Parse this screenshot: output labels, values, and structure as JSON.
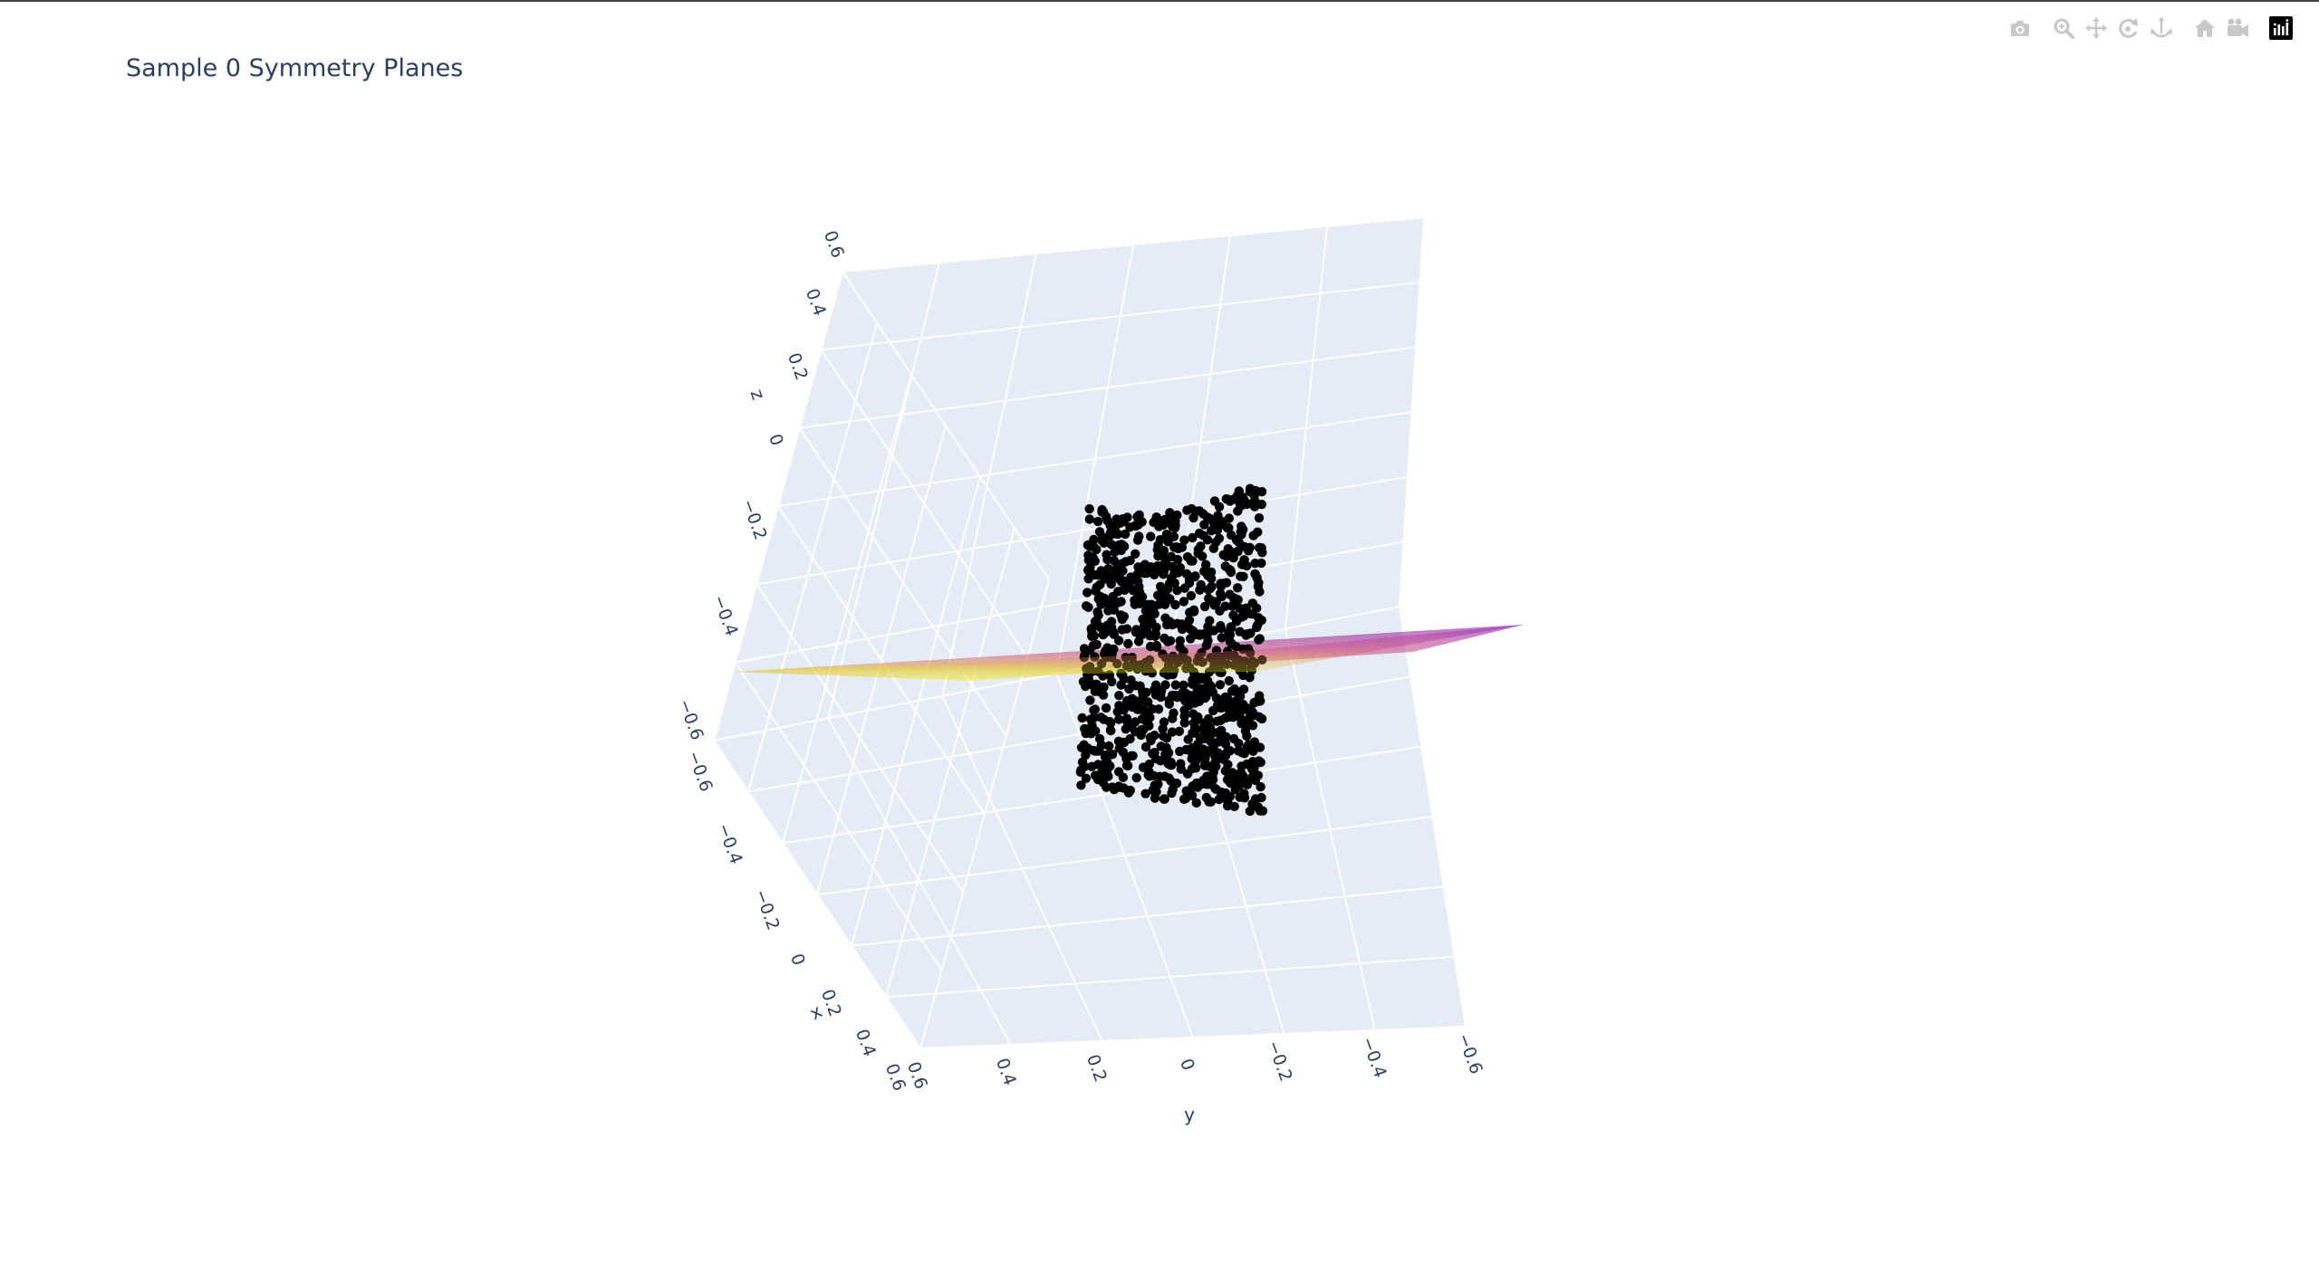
{
  "modebar": {
    "buttons": [
      {
        "name": "camera-icon",
        "tip": "Download plot as a png"
      },
      {
        "name": "zoom-icon",
        "tip": "Zoom"
      },
      {
        "name": "pan-icon",
        "tip": "Pan"
      },
      {
        "name": "orbit-rotation-icon",
        "tip": "Orbital rotation"
      },
      {
        "name": "turntable-rotation-icon",
        "tip": "Turntable rotation"
      },
      {
        "name": "home-icon",
        "tip": "Reset camera to default"
      },
      {
        "name": "camera-last-save-icon",
        "tip": "Reset camera to last save"
      },
      {
        "name": "plotly-logo-icon",
        "tip": "Produced with Plotly"
      }
    ]
  },
  "chart_data": {
    "type": "scatter3d",
    "title": "Sample 0 Symmetry Planes",
    "axes": {
      "x": {
        "title": "x",
        "range": [
          -0.6,
          0.6
        ],
        "ticks": [
          "−0.6",
          "−0.4",
          "−0.2",
          "0",
          "0.2",
          "0.4",
          "0.6"
        ]
      },
      "y": {
        "title": "y",
        "range": [
          -0.6,
          0.6
        ],
        "ticks": [
          "0.6",
          "0.4",
          "0.2",
          "0",
          "−0.2",
          "−0.4",
          "−0.6"
        ]
      },
      "z": {
        "title": "z",
        "range": [
          -0.6,
          0.6
        ],
        "ticks": [
          "0.6",
          "0.4",
          "0.2",
          "0",
          "−0.2",
          "−0.4",
          "−0.6"
        ]
      }
    },
    "grid": true,
    "background_color": "#e5ecf6",
    "series": [
      {
        "kind": "points",
        "color": "#000000",
        "count": 1000,
        "x_range": [
          -0.2,
          0.2
        ],
        "y_range": [
          -0.1,
          0.1
        ],
        "z_range": [
          -0.25,
          0.25
        ]
      },
      {
        "kind": "plane",
        "equation": "z = 0",
        "colorscale": [
          "#0d0887",
          "#7e03a8",
          "#cc4778",
          "#f89540",
          "#f0f921"
        ],
        "opacity": 0.4
      }
    ]
  }
}
